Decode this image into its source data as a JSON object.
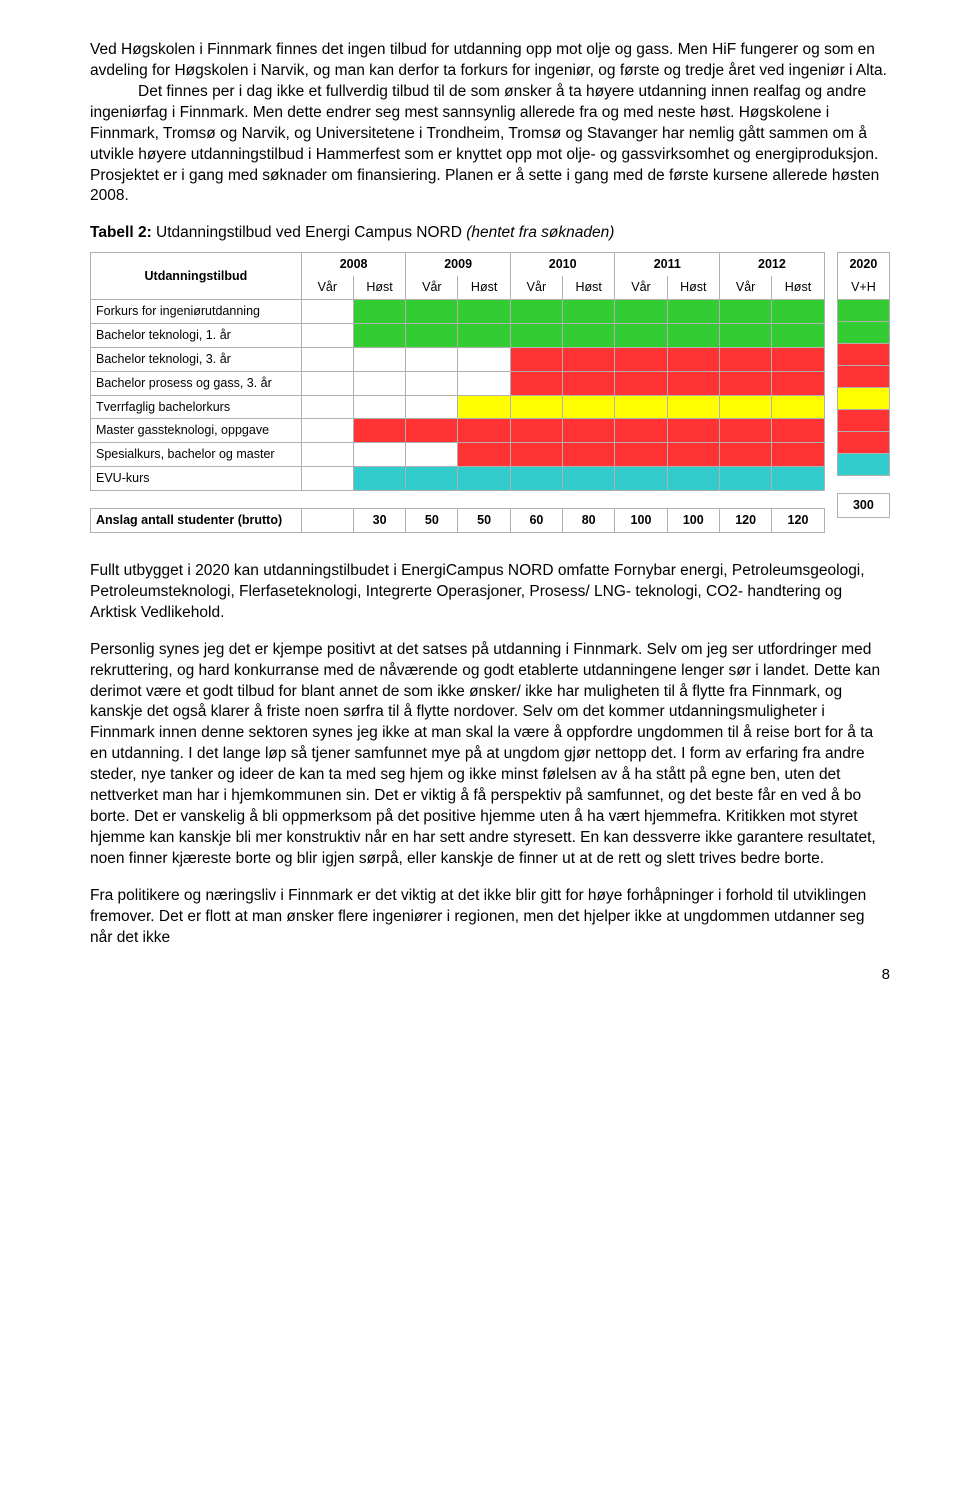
{
  "colors": {
    "green": "#33cc33",
    "red": "#ff3333",
    "yellow": "#ffff00",
    "cyan": "#33cccc",
    "grid": "#b0b0b0"
  },
  "para1": "Ved Høgskolen i Finnmark finnes det ingen tilbud for utdanning opp mot olje og gass. Men HiF fungerer og som en avdeling for Høgskolen i Narvik, og man kan derfor ta forkurs for ingeniør, og første og tredje året ved ingeniør i Alta.",
  "para1b": "Det finnes per i dag ikke et fullverdig tilbud til de som ønsker å ta høyere utdanning innen realfag og andre ingeniørfag i Finnmark. Men dette endrer seg mest sannsynlig allerede fra og med neste høst. Høgskolene i Finnmark, Tromsø og Narvik, og Universitetene i Trondheim, Tromsø og Stavanger har nemlig gått sammen om å utvikle høyere utdanningstilbud i Hammerfest som er knyttet opp mot olje- og gassvirksomhet og energiproduksjon. Prosjektet er i gang med søknader om finansiering. Planen er å sette i gang med de første kursene allerede høsten 2008.",
  "table_title_bold": "Tabell 2:",
  "table_title_rest": " Utdanningstilbud ved Energi Campus NORD ",
  "table_title_italic": "(hentet fra søknaden)",
  "years": [
    "2008",
    "2009",
    "2010",
    "2011",
    "2012"
  ],
  "year_side": "2020",
  "semesters": [
    "Vår",
    "Høst"
  ],
  "sem_side": "V+H",
  "row_header": "Utdanningstilbud",
  "rows": [
    {
      "label": "Forkurs for ingeniørutdanning",
      "cells": [
        "",
        "green",
        "green",
        "green",
        "green",
        "green",
        "green",
        "green",
        "green",
        "green"
      ],
      "side": "green"
    },
    {
      "label": "Bachelor teknologi, 1. år",
      "cells": [
        "",
        "green",
        "green",
        "green",
        "green",
        "green",
        "green",
        "green",
        "green",
        "green"
      ],
      "side": "green"
    },
    {
      "label": "Bachelor teknologi, 3. år",
      "cells": [
        "",
        "",
        "",
        "",
        "red",
        "red",
        "red",
        "red",
        "red",
        "red"
      ],
      "side": "red"
    },
    {
      "label": "Bachelor prosess og gass, 3. år",
      "cells": [
        "",
        "",
        "",
        "",
        "red",
        "red",
        "red",
        "red",
        "red",
        "red"
      ],
      "side": "red"
    },
    {
      "label": "Tverrfaglig bachelorkurs",
      "cells": [
        "",
        "",
        "",
        "yellow",
        "yellow",
        "yellow",
        "yellow",
        "yellow",
        "yellow",
        "yellow"
      ],
      "side": "yellow"
    },
    {
      "label": "Master gassteknologi, oppgave",
      "cells": [
        "",
        "red",
        "red",
        "red",
        "red",
        "red",
        "red",
        "red",
        "red",
        "red"
      ],
      "side": "red"
    },
    {
      "label": "Spesialkurs, bachelor og master",
      "cells": [
        "",
        "",
        "",
        "red",
        "red",
        "red",
        "red",
        "red",
        "red",
        "red"
      ],
      "side": "red"
    },
    {
      "label": "EVU-kurs",
      "cells": [
        "",
        "cyan",
        "cyan",
        "cyan",
        "cyan",
        "cyan",
        "cyan",
        "cyan",
        "cyan",
        "cyan"
      ],
      "side": "cyan"
    }
  ],
  "totals_label": "Anslag antall studenter (brutto)",
  "totals": [
    "30",
    "50",
    "50",
    "60",
    "80",
    "100",
    "100",
    "120",
    "120"
  ],
  "totals_side": "300",
  "para2": "Fullt utbygget i 2020 kan utdanningstilbudet i EnergiCampus NORD omfatte Fornybar energi, Petroleumsgeologi, Petroleumsteknologi, Flerfaseteknologi, Integrerte Operasjoner, Prosess/ LNG- teknologi, CO2- handtering og Arktisk Vedlikehold.",
  "para3": "Personlig synes jeg det er kjempe positivt at det satses på utdanning i Finnmark. Selv om jeg ser utfordringer med rekruttering, og hard konkurranse med de nåværende og godt etablerte utdanningene lenger sør i landet. Dette kan derimot være et godt tilbud for blant annet de som ikke ønsker/ ikke har muligheten til å flytte fra Finnmark, og kanskje det også klarer å friste noen sørfra til å flytte nordover. Selv om det kommer utdanningsmuligheter i Finnmark innen denne sektoren synes jeg ikke at man skal la være å oppfordre ungdommen til å reise bort for å ta en utdanning. I det lange løp så tjener samfunnet mye på at ungdom gjør nettopp det. I form av erfaring fra andre steder, nye tanker og ideer de kan ta med seg hjem og ikke minst følelsen av å ha stått på egne ben, uten det nettverket man har i hjemkommunen sin.  Det er viktig å få perspektiv på samfunnet, og det beste får en ved å bo borte. Det er vanskelig å bli oppmerksom på det positive hjemme uten å ha vært hjemmefra. Kritikken mot styret hjemme kan kanskje bli mer konstruktiv når en har sett andre styresett. En kan dessverre ikke garantere resultatet, noen finner kjæreste borte og blir igjen sørpå, eller kanskje de finner ut at de rett og slett trives bedre borte.",
  "para4": "Fra politikere og næringsliv i Finnmark er det viktig at det ikke blir gitt for høye forhåpninger i forhold til utviklingen fremover. Det er flott at man ønsker flere ingeniører i regionen, men det hjelper ikke at ungdommen utdanner seg når det ikke",
  "page_number": "8"
}
